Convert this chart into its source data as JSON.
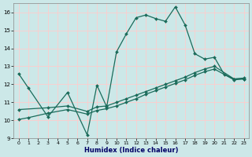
{
  "xlabel": "Humidex (Indice chaleur)",
  "bg_color": "#cce8e8",
  "grid_color": "#ffcccc",
  "line_color": "#1a6b5a",
  "xlim": [
    -0.5,
    23.5
  ],
  "ylim": [
    9,
    16.5
  ],
  "yticks": [
    9,
    10,
    11,
    12,
    13,
    14,
    15,
    16
  ],
  "xticks": [
    0,
    1,
    2,
    3,
    4,
    5,
    6,
    7,
    8,
    9,
    10,
    11,
    12,
    13,
    14,
    15,
    16,
    17,
    18,
    19,
    20,
    21,
    22,
    23
  ],
  "line1_x": [
    0,
    1,
    3,
    5,
    7,
    8,
    9,
    10,
    11,
    12,
    13,
    14,
    15,
    16,
    17,
    18,
    19,
    20,
    21,
    22,
    23
  ],
  "line1_y": [
    12.6,
    11.8,
    10.2,
    11.55,
    9.2,
    11.95,
    10.75,
    13.8,
    14.8,
    15.7,
    15.85,
    15.65,
    15.5,
    16.3,
    15.3,
    13.7,
    13.4,
    13.5,
    12.55,
    12.3,
    12.3
  ],
  "line2_x": [
    0,
    3,
    5,
    7,
    8,
    9,
    10,
    11,
    12,
    13,
    14,
    15,
    16,
    17,
    18,
    19,
    20,
    22,
    23
  ],
  "line2_y": [
    10.6,
    10.7,
    10.8,
    10.5,
    10.75,
    10.8,
    11.0,
    11.2,
    11.4,
    11.6,
    11.8,
    12.0,
    12.2,
    12.4,
    12.65,
    12.85,
    13.0,
    12.3,
    12.35
  ],
  "line3_x": [
    0,
    1,
    3,
    5,
    7,
    8,
    9,
    10,
    11,
    12,
    13,
    14,
    15,
    16,
    17,
    18,
    19,
    20,
    22,
    23
  ],
  "line3_y": [
    10.05,
    10.15,
    10.4,
    10.6,
    10.35,
    10.55,
    10.65,
    10.8,
    11.0,
    11.2,
    11.45,
    11.65,
    11.85,
    12.05,
    12.25,
    12.5,
    12.7,
    12.85,
    12.25,
    12.3
  ]
}
